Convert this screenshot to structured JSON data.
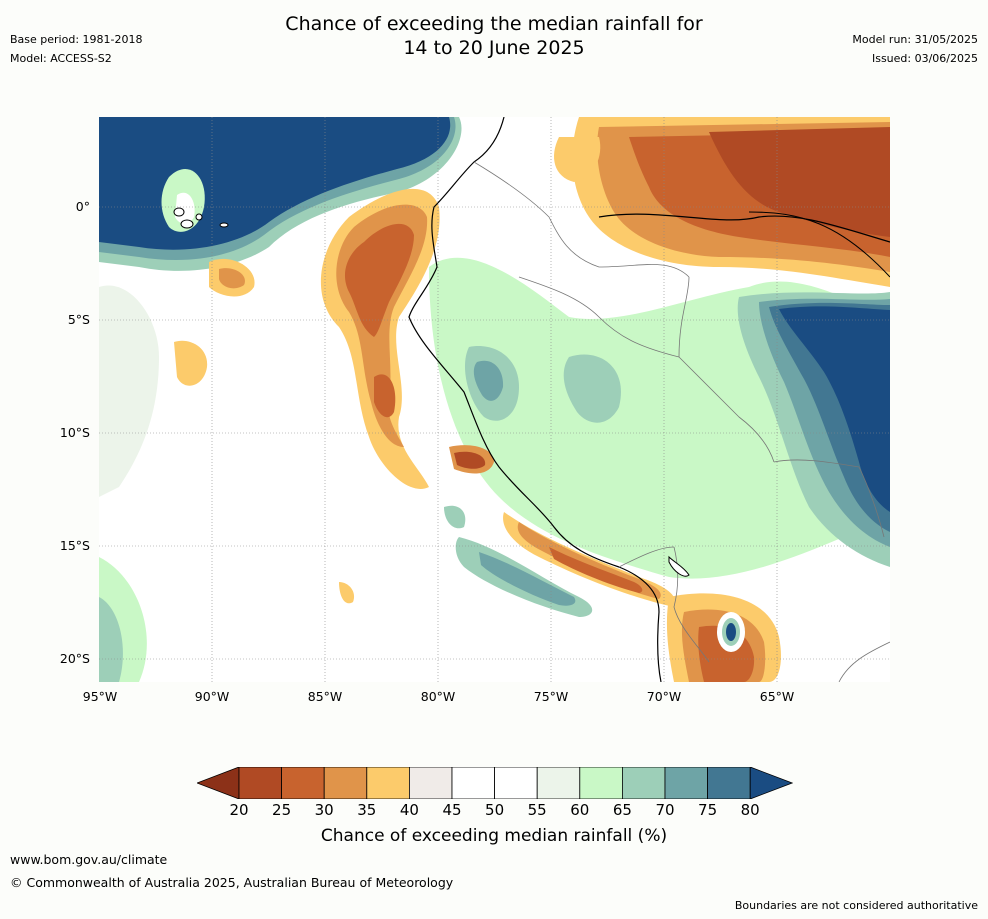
{
  "title_line1": "Chance of exceeding the median rainfall for",
  "title_line2": "14 to 20 June 2025",
  "meta": {
    "base_period": "Base period: 1981-2018",
    "model": "Model: ACCESS-S2",
    "model_run": "Model run: 31/05/2025",
    "issued": "Issued: 03/06/2025"
  },
  "axes": {
    "lat_labels": [
      "0°",
      "5°S",
      "10°S",
      "15°S",
      "20°S"
    ],
    "lon_labels": [
      "95°W",
      "90°W",
      "85°W",
      "80°W",
      "75°W",
      "70°W",
      "65°W"
    ]
  },
  "colorbar": {
    "ticks": [
      "20",
      "25",
      "30",
      "35",
      "40",
      "45",
      "50",
      "55",
      "60",
      "65",
      "70",
      "75",
      "80"
    ],
    "low_color": "#8c3118",
    "colors": [
      "#b04a24",
      "#c8632e",
      "#e0944a",
      "#fccb6b",
      "#f0ebe8",
      "#ffffff",
      "#ffffff",
      "#ecf4ea",
      "#c9f8c6",
      "#9dcfb8",
      "#6ea4a6",
      "#427792"
    ],
    "high_color": "#1a4c82",
    "label": "Chance of exceeding median rainfall (%)"
  },
  "footer": {
    "site": "www.bom.gov.au/climate",
    "copyright": "© Commonwealth of Australia 2025, Australian Bureau of Meteorology",
    "disclaimer": "Boundaries are not considered authoritative"
  }
}
